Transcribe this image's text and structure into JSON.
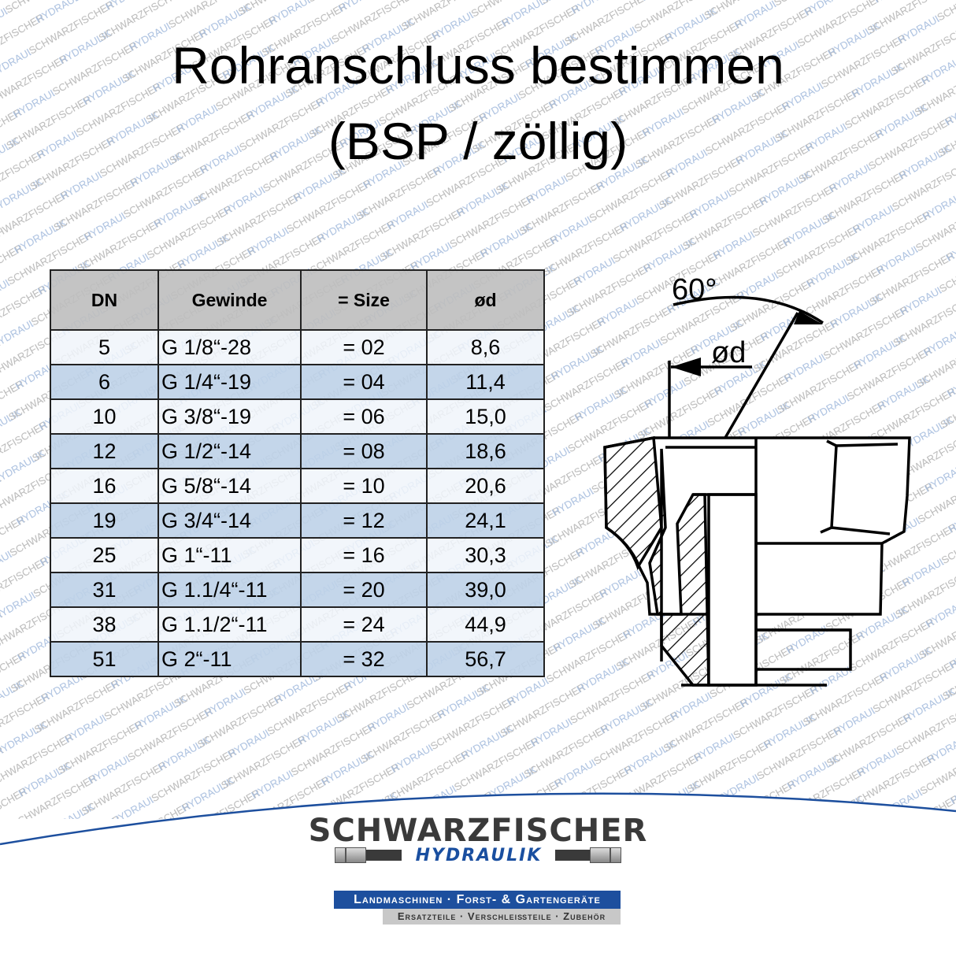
{
  "title_line1": "Rohranschluss bestimmen",
  "title_line2": "(BSP / zöllig)",
  "watermark": "SCHWARZFISCHER HYDRAULIK",
  "colors": {
    "header_bg": "#bebebe",
    "row_light": "#f0f4fa",
    "row_blue": "#bed1e8",
    "brand_blue": "#1d4f9e",
    "brand_gray": "#3a3a3a"
  },
  "table": {
    "headers": [
      "DN",
      "Gewinde",
      "= Size",
      "ød"
    ],
    "rows": [
      [
        "5",
        "G 1/8“-28",
        "= 02",
        "8,6"
      ],
      [
        "6",
        "G 1/4“-19",
        "= 04",
        "11,4"
      ],
      [
        "10",
        "G 3/8“-19",
        "= 06",
        "15,0"
      ],
      [
        "12",
        "G 1/2“-14",
        "= 08",
        "18,6"
      ],
      [
        "16",
        "G 5/8“-14",
        "= 10",
        "20,6"
      ],
      [
        "19",
        "G 3/4“-14",
        "= 12",
        "24,1"
      ],
      [
        "25",
        "G 1“-11",
        "= 16",
        "30,3"
      ],
      [
        "31",
        "G 1.1/4“-11",
        "= 20",
        "39,0"
      ],
      [
        "38",
        "G 1.1/2“-11",
        "= 24",
        "44,9"
      ],
      [
        "51",
        "G 2“-11",
        "= 32",
        "56,7"
      ]
    ]
  },
  "drawing": {
    "angle_label": "60°",
    "diameter_label": "ød"
  },
  "logo": {
    "name": "SCHWARZFISCHER",
    "sub": "HYDRAULIK",
    "tagline1": "Landmaschinen · Forst- & Gartengeräte",
    "tagline2": "Ersatzteile · Verschleißteile · Zubehör"
  }
}
